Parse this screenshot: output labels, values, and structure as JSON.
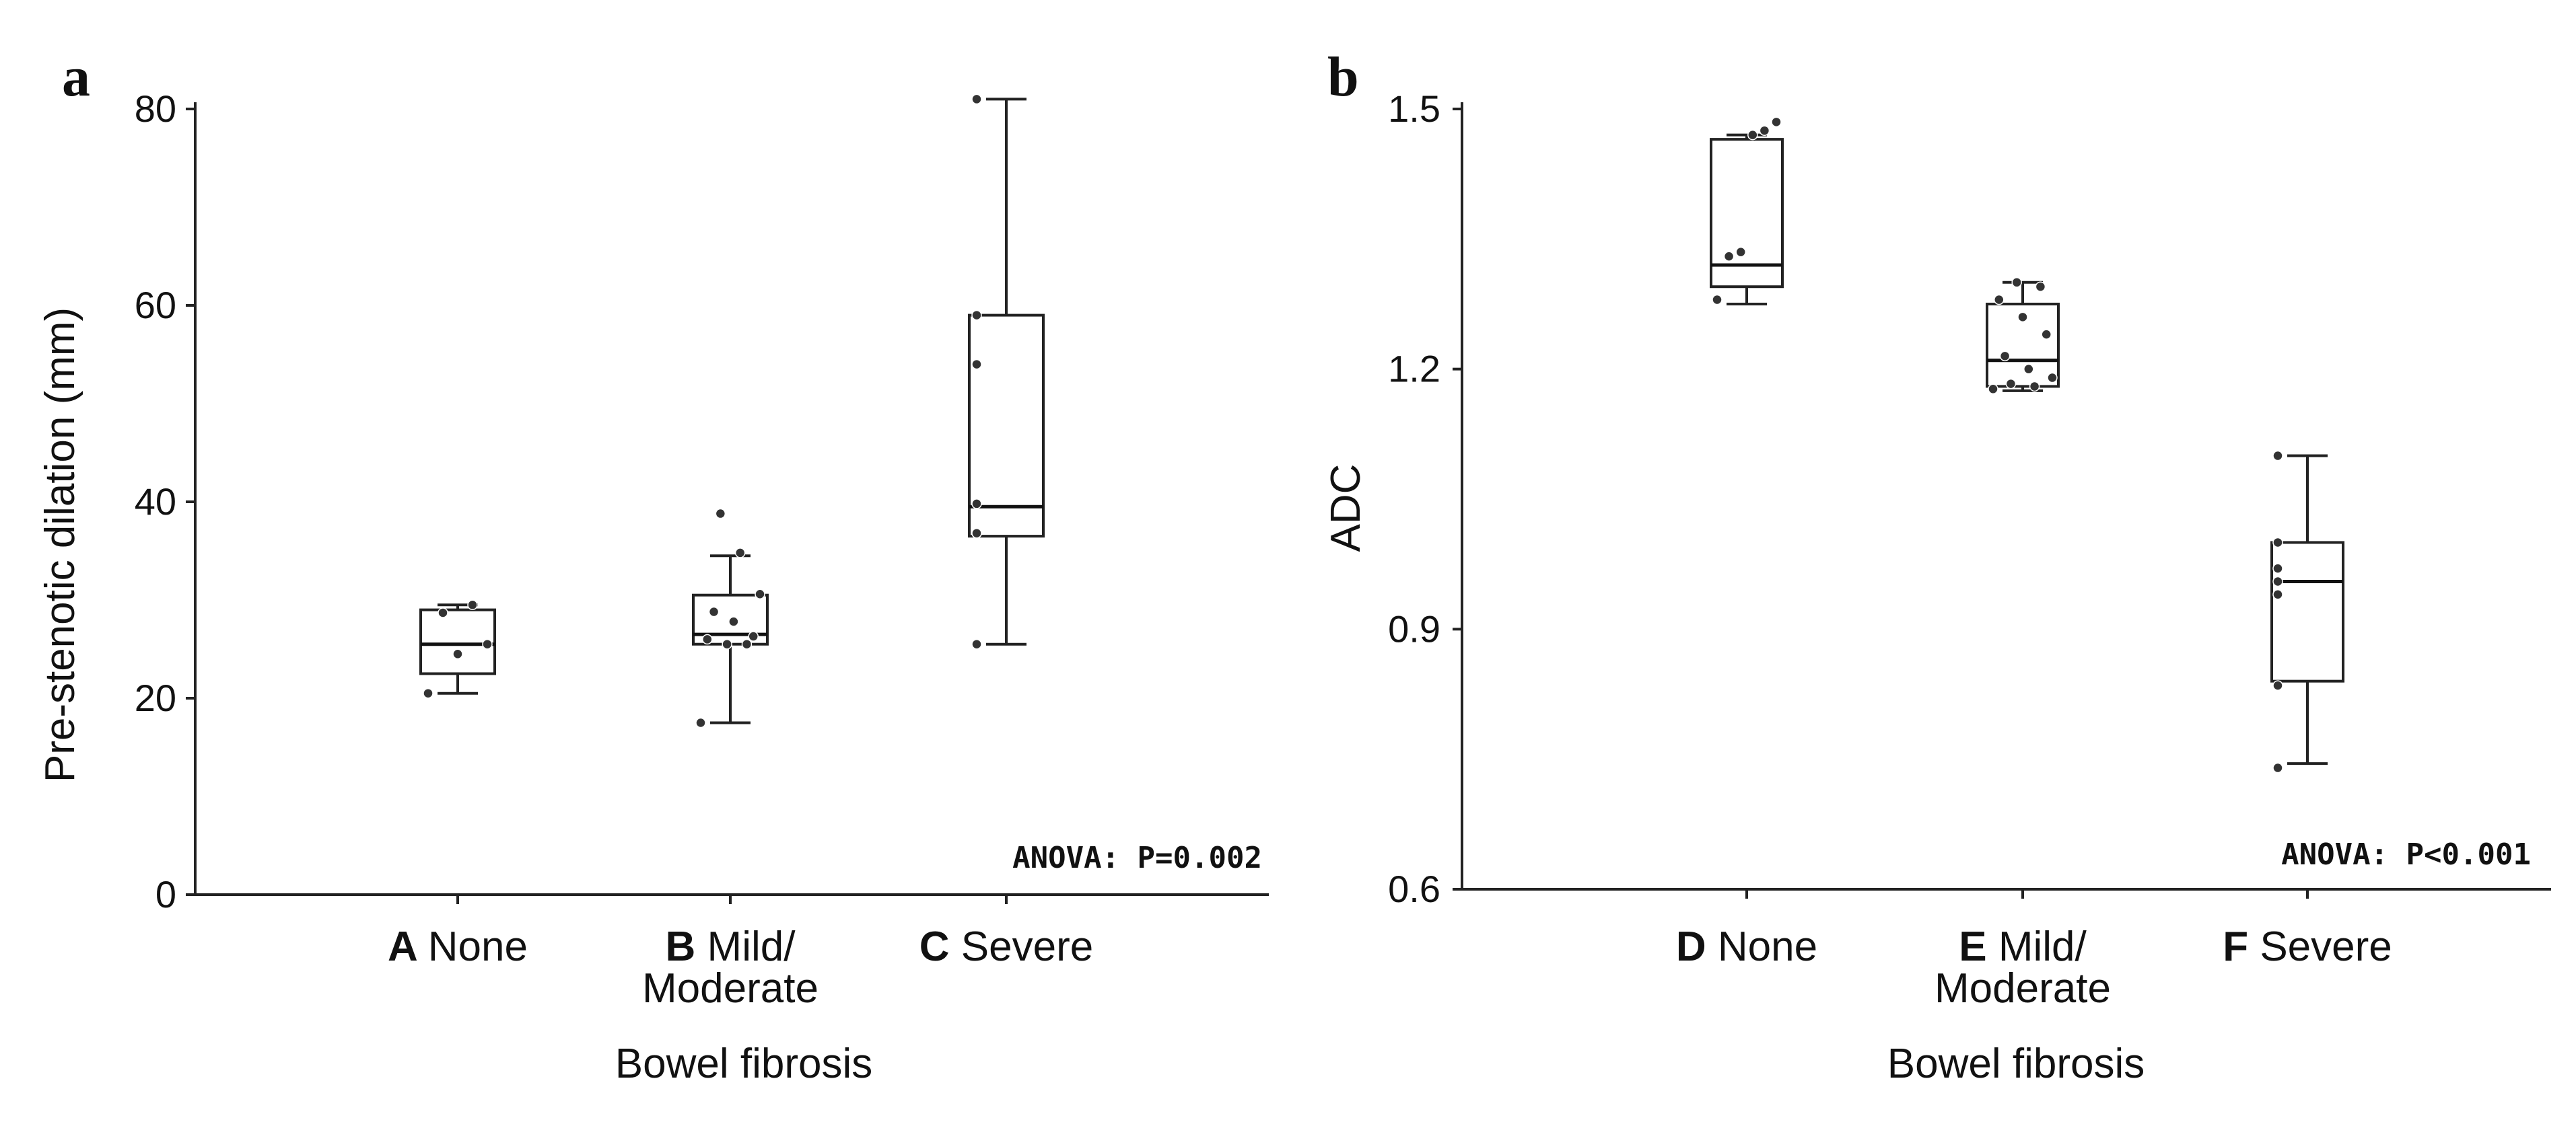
{
  "chart_data": [
    {
      "type": "box",
      "panel_label": "a",
      "ylabel": "Pre-stenotic dilation (mm)",
      "xlabel": "Bowel fibrosis",
      "ylim": [
        0,
        80
      ],
      "yticks": [
        0,
        20,
        40,
        60,
        80
      ],
      "annotation": "ANOVA: P=0.002",
      "categories": [
        {
          "code": "A",
          "label_lines": [
            "None"
          ]
        },
        {
          "code": "B",
          "label_lines": [
            "Mild/",
            "Moderate"
          ]
        },
        {
          "code": "C",
          "label_lines": [
            "Severe"
          ]
        }
      ],
      "boxes": [
        {
          "whisker_low": 20.5,
          "q1": 22.5,
          "median": 25.5,
          "q3": 29,
          "whisker_high": 29.5,
          "points": [
            20.5,
            24.5,
            25.5,
            28.7,
            29.5
          ]
        },
        {
          "whisker_low": 17.5,
          "q1": 25.5,
          "median": 26.5,
          "q3": 30.5,
          "whisker_high": 34.5,
          "points": [
            17.5,
            25.5,
            25.5,
            26,
            26.3,
            27.8,
            28.8,
            30.6,
            34.8,
            38.8
          ]
        },
        {
          "whisker_low": 25.5,
          "q1": 36.5,
          "median": 39.5,
          "q3": 59,
          "whisker_high": 81,
          "points": [
            25.5,
            36.8,
            36.8,
            39.8,
            54,
            59,
            81
          ]
        }
      ]
    },
    {
      "type": "box",
      "panel_label": "b",
      "ylabel": "ADC",
      "xlabel": "Bowel fibrosis",
      "ylim": [
        0.6,
        1.5
      ],
      "yticks": [
        "0.6",
        "0.9",
        "1.2",
        "1.5"
      ],
      "annotation": "ANOVA: P<0.001",
      "categories": [
        {
          "code": "D",
          "label_lines": [
            "None"
          ]
        },
        {
          "code": "E",
          "label_lines": [
            "Mild/",
            "Moderate"
          ]
        },
        {
          "code": "F",
          "label_lines": [
            "Severe"
          ]
        }
      ],
      "boxes": [
        {
          "whisker_low": 1.275,
          "q1": 1.295,
          "median": 1.32,
          "q3": 1.465,
          "whisker_high": 1.47,
          "points": [
            1.28,
            1.33,
            1.335,
            1.47,
            1.475,
            1.485
          ]
        },
        {
          "whisker_low": 1.175,
          "q1": 1.18,
          "median": 1.21,
          "q3": 1.275,
          "whisker_high": 1.3,
          "points": [
            1.177,
            1.18,
            1.183,
            1.19,
            1.2,
            1.215,
            1.24,
            1.26,
            1.28,
            1.295,
            1.3
          ]
        },
        {
          "whisker_low": 0.745,
          "q1": 0.84,
          "median": 0.955,
          "q3": 1.0,
          "whisker_high": 1.1,
          "points": [
            0.74,
            0.835,
            0.94,
            0.955,
            0.97,
            1.0,
            1.1
          ]
        }
      ]
    }
  ]
}
